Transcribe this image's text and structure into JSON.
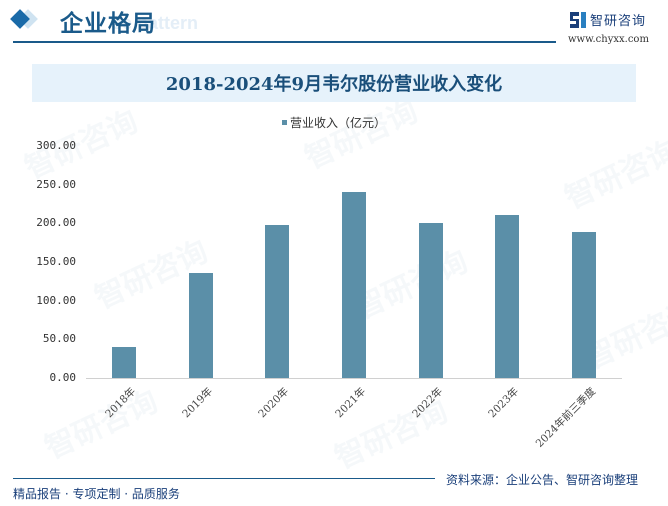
{
  "header": {
    "section_title": "企业格局",
    "ghost_text": "se pattern",
    "logo_name": "智研咨询",
    "logo_url": "www.chyxx.com"
  },
  "chart_title": "2018-2024年9月韦尔股份营业收入变化",
  "colors": {
    "bar": "#5b8fa8",
    "accent": "#1a5a8a",
    "title_band": "#e6f2fb"
  },
  "chart_data": {
    "type": "bar",
    "title": "2018-2024年9月韦尔股份营业收入变化",
    "xlabel": "",
    "ylabel": "",
    "legend": [
      "营业收入（亿元）"
    ],
    "legend_position": "top",
    "grid": false,
    "ylim": [
      0,
      300
    ],
    "yticks": [
      "0.00",
      "50.00",
      "100.00",
      "150.00",
      "200.00",
      "250.00",
      "300.00"
    ],
    "categories": [
      "2018年",
      "2019年",
      "2020年",
      "2021年",
      "2022年",
      "2023年",
      "2024年前三季度"
    ],
    "series": [
      {
        "name": "营业收入（亿元）",
        "values": [
          39.6,
          136.3,
          198.2,
          241.0,
          200.8,
          210.2,
          188.2
        ]
      }
    ]
  },
  "footer": {
    "tagline": "精品报告 · 专项定制 · 品质服务",
    "source": "资料来源：企业公告、智研咨询整理"
  },
  "watermark": "智研咨询"
}
